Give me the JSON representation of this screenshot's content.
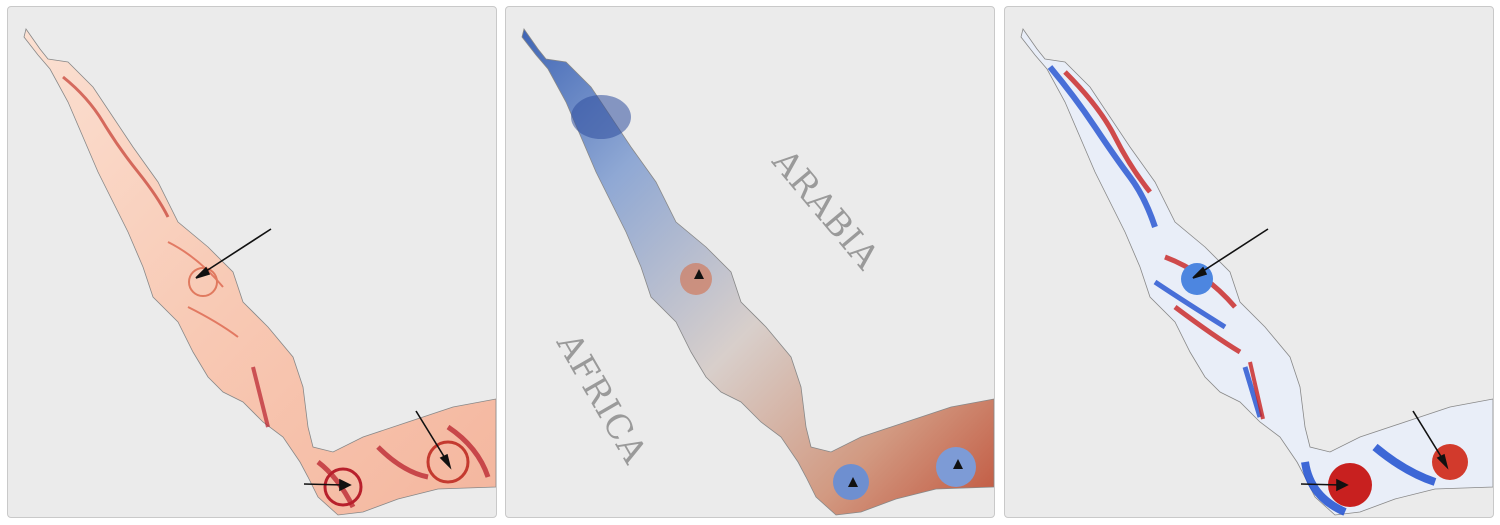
{
  "panels": [
    {
      "id": "left",
      "colormap": "white-to-red",
      "colors": {
        "base": "#fbe3d6",
        "mid": "#f2a486",
        "strong": "#b8202c"
      }
    },
    {
      "id": "middle",
      "colormap": "blue-to-red",
      "colors": {
        "cool": "#3b5fb0",
        "neutral": "#dcd6d2",
        "warm": "#c1553d"
      }
    },
    {
      "id": "right",
      "colormap": "blue-white-red",
      "colors": {
        "neg": "#1f4fd0",
        "zero": "#f4f4f4",
        "pos": "#c8201f"
      }
    }
  ],
  "labels": {
    "region_1": "ARABIA",
    "region_2": "AFRICA"
  },
  "background": "#ebebeb"
}
